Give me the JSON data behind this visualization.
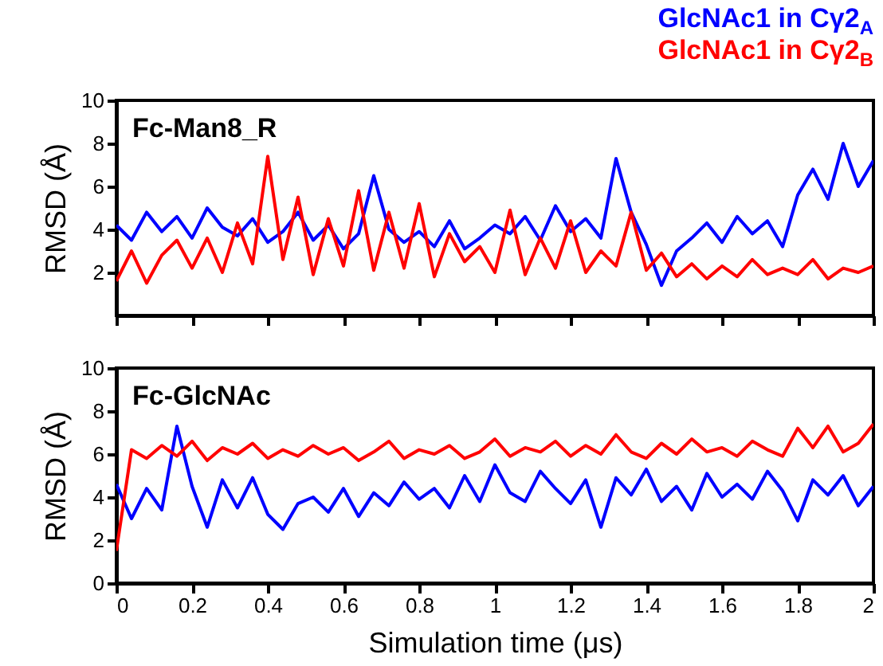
{
  "chart_data": [
    {
      "type": "line",
      "title": "Fc-Man8_R",
      "ylabel": "RMSD (Å)",
      "xlim": [
        0,
        2
      ],
      "ylim": [
        0,
        10
      ],
      "yticks": [
        2,
        4,
        6,
        8,
        10
      ],
      "xticks": [
        0,
        0.2,
        0.4,
        0.6,
        0.8,
        1,
        1.2,
        1.4,
        1.6,
        1.8,
        2
      ],
      "tick_labels": "y",
      "legend": "top right",
      "x": [
        0,
        0.04,
        0.08,
        0.12,
        0.16,
        0.2,
        0.24,
        0.28,
        0.32,
        0.36,
        0.4,
        0.44,
        0.48,
        0.52,
        0.56,
        0.6,
        0.64,
        0.68,
        0.72,
        0.76,
        0.8,
        0.84,
        0.88,
        0.92,
        0.96,
        1,
        1.04,
        1.08,
        1.12,
        1.16,
        1.2,
        1.24,
        1.28,
        1.32,
        1.36,
        1.4,
        1.44,
        1.48,
        1.52,
        1.56,
        1.6,
        1.64,
        1.68,
        1.72,
        1.76,
        1.8,
        1.84,
        1.88,
        1.92,
        1.96,
        2
      ],
      "series": [
        {
          "name": "GlcNAc1 in Cγ2$_{A}$",
          "color": "#0000ff",
          "values": [
            4.2,
            3.5,
            4.8,
            3.9,
            4.6,
            3.6,
            5.0,
            4.1,
            3.7,
            4.5,
            3.4,
            3.9,
            4.8,
            3.5,
            4.2,
            3.1,
            3.8,
            6.5,
            4.0,
            3.4,
            3.9,
            3.2,
            4.4,
            3.1,
            3.6,
            4.2,
            3.8,
            4.6,
            3.5,
            5.1,
            3.9,
            4.5,
            3.6,
            7.3,
            4.8,
            3.3,
            1.4,
            3.0,
            3.6,
            4.3,
            3.4,
            4.6,
            3.8,
            4.4,
            3.2,
            5.6,
            6.8,
            5.4,
            8.0,
            6.0,
            7.2
          ]
        },
        {
          "name": "GlcNAc1 in Cγ2$_{B}$",
          "color": "#ff0000",
          "values": [
            1.6,
            3.0,
            1.5,
            2.8,
            3.5,
            2.2,
            3.6,
            2.0,
            4.3,
            2.4,
            7.4,
            2.6,
            5.5,
            1.9,
            4.5,
            2.3,
            5.8,
            2.1,
            4.8,
            2.2,
            5.2,
            1.8,
            3.8,
            2.5,
            3.2,
            2.0,
            4.9,
            1.9,
            3.6,
            2.2,
            4.4,
            2.0,
            3.0,
            2.3,
            4.8,
            2.1,
            2.9,
            1.8,
            2.4,
            1.7,
            2.3,
            1.8,
            2.6,
            1.9,
            2.2,
            1.9,
            2.6,
            1.7,
            2.2,
            2.0,
            2.3
          ]
        }
      ]
    },
    {
      "type": "line",
      "title": "Fc-GlcNAc",
      "xlabel": "Simulation time (μs)",
      "ylabel": "RMSD (Å)",
      "xlim": [
        0,
        2
      ],
      "ylim": [
        0,
        10
      ],
      "yticks": [
        0,
        2,
        4,
        6,
        8,
        10
      ],
      "xticks": [
        0,
        0.2,
        0.4,
        0.6,
        0.8,
        1,
        1.2,
        1.4,
        1.6,
        1.8,
        2
      ],
      "x": [
        0,
        0.04,
        0.08,
        0.12,
        0.16,
        0.2,
        0.24,
        0.28,
        0.32,
        0.36,
        0.4,
        0.44,
        0.48,
        0.52,
        0.56,
        0.6,
        0.64,
        0.68,
        0.72,
        0.76,
        0.8,
        0.84,
        0.88,
        0.92,
        0.96,
        1,
        1.04,
        1.08,
        1.12,
        1.16,
        1.2,
        1.24,
        1.28,
        1.32,
        1.36,
        1.4,
        1.44,
        1.48,
        1.52,
        1.56,
        1.6,
        1.64,
        1.68,
        1.72,
        1.76,
        1.8,
        1.84,
        1.88,
        1.92,
        1.96,
        2
      ],
      "series": [
        {
          "color": "#0000ff",
          "values": [
            4.6,
            3.0,
            4.4,
            3.4,
            7.3,
            4.5,
            2.6,
            4.8,
            3.5,
            4.9,
            3.2,
            2.5,
            3.7,
            4.0,
            3.3,
            4.4,
            3.1,
            4.2,
            3.6,
            4.7,
            3.9,
            4.4,
            3.5,
            5.0,
            3.8,
            5.5,
            4.2,
            3.8,
            5.2,
            4.4,
            3.7,
            4.8,
            2.6,
            4.9,
            4.1,
            5.3,
            3.8,
            4.5,
            3.4,
            5.1,
            4.0,
            4.6,
            3.9,
            5.2,
            4.3,
            2.9,
            4.8,
            4.1,
            5.0,
            3.6,
            4.5
          ]
        },
        {
          "color": "#ff0000",
          "values": [
            1.5,
            6.2,
            5.8,
            6.4,
            5.9,
            6.6,
            5.7,
            6.3,
            6.0,
            6.5,
            5.8,
            6.2,
            5.9,
            6.4,
            6.0,
            6.3,
            5.7,
            6.1,
            6.6,
            5.8,
            6.2,
            6.0,
            6.4,
            5.8,
            6.1,
            6.7,
            5.9,
            6.3,
            6.1,
            6.6,
            5.9,
            6.4,
            6.0,
            6.9,
            6.1,
            5.8,
            6.5,
            6.0,
            6.7,
            6.1,
            6.3,
            5.9,
            6.6,
            6.2,
            5.9,
            7.2,
            6.3,
            7.3,
            6.1,
            6.5,
            7.4
          ]
        }
      ]
    }
  ]
}
